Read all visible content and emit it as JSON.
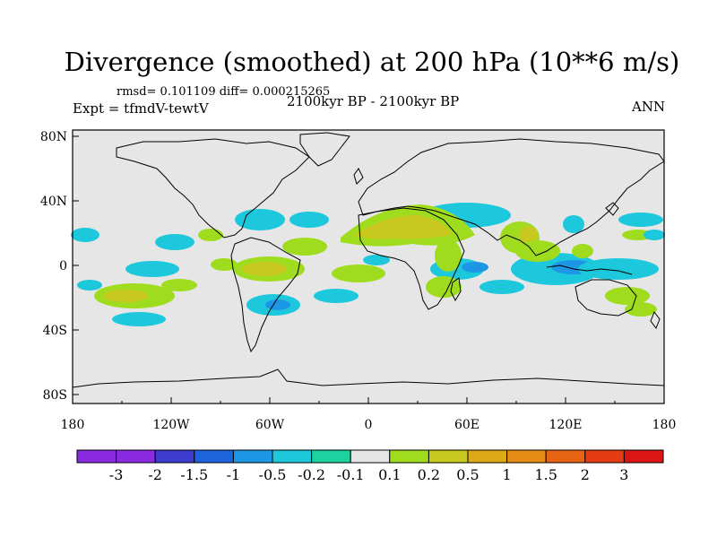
{
  "title": "Divergence (smoothed) at 200 hPa (10**6 m/s)",
  "stats": "rmsd= 0.101109 diff= 0.000215265",
  "experiment": "Expt = tfmdV-tewtV",
  "period": "2100kyr BP - 2100kyr BP",
  "season": "ANN",
  "map": {
    "lat_ticks": [
      "80N",
      "40N",
      "0",
      "40S",
      "80S"
    ],
    "lon_ticks": [
      "180",
      "120W",
      "60W",
      "0",
      "60E",
      "120E",
      "180"
    ],
    "background_color": "#e6e6e6"
  },
  "colorbar": {
    "labels": [
      "-3",
      "-2",
      "-1.5",
      "-1",
      "-0.5",
      "-0.2",
      "-0.1",
      "0.1",
      "0.2",
      "0.5",
      "1",
      "1.5",
      "2",
      "3"
    ],
    "colors": [
      "#8a2be2",
      "#3c3ccf",
      "#1e64dc",
      "#1e96e6",
      "#1ec8dc",
      "#1ed2a0",
      "#e6e6e6",
      "#a0dc1e",
      "#c8c81e",
      "#dcaa14",
      "#e68c14",
      "#e66414",
      "#e63c14",
      "#dc1414"
    ]
  }
}
